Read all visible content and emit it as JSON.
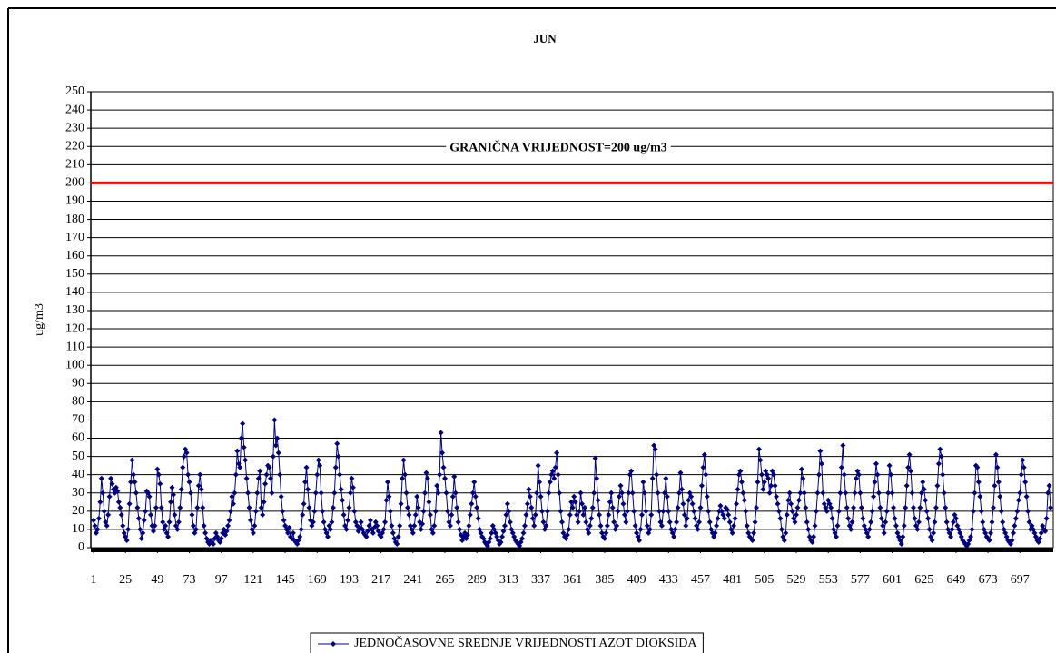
{
  "chart_data": {
    "type": "line",
    "title": "JUN",
    "y_label": "ug/m3",
    "series": [
      {
        "name": "JEDNOČASOVNE SREDNJE VRIJEDNOSTI AZOT DIOKSIDA",
        "color": "#000080",
        "marker": "diamond",
        "values": [
          15,
          12,
          8,
          10,
          16,
          25,
          38,
          30,
          20,
          14,
          12,
          18,
          28,
          38,
          35,
          32,
          30,
          33,
          31,
          25,
          22,
          18,
          12,
          8,
          6,
          4,
          10,
          24,
          36,
          48,
          40,
          36,
          30,
          22,
          16,
          10,
          5,
          8,
          15,
          20,
          31,
          30,
          28,
          18,
          12,
          9,
          12,
          22,
          43,
          40,
          35,
          22,
          14,
          10,
          12,
          8,
          6,
          14,
          25,
          33,
          29,
          18,
          12,
          10,
          14,
          22,
          32,
          44,
          50,
          54,
          52,
          40,
          36,
          30,
          18,
          12,
          8,
          10,
          22,
          34,
          40,
          32,
          22,
          12,
          8,
          5,
          3,
          2,
          4,
          3,
          2,
          5,
          8,
          6,
          4,
          3,
          5,
          8,
          10,
          7,
          9,
          12,
          15,
          20,
          28,
          24,
          30,
          40,
          53,
          46,
          44,
          60,
          68,
          55,
          48,
          38,
          30,
          22,
          15,
          10,
          8,
          12,
          20,
          30,
          38,
          42,
          22,
          18,
          25,
          35,
          40,
          45,
          44,
          38,
          30,
          50,
          70,
          56,
          60,
          52,
          40,
          28,
          20,
          15,
          12,
          10,
          8,
          11,
          6,
          5,
          8,
          4,
          3,
          2,
          4,
          6,
          10,
          18,
          24,
          36,
          44,
          32,
          22,
          15,
          12,
          14,
          20,
          30,
          40,
          48,
          45,
          30,
          20,
          14,
          10,
          8,
          6,
          12,
          10,
          14,
          22,
          30,
          44,
          57,
          50,
          40,
          32,
          26,
          18,
          12,
          10,
          15,
          22,
          30,
          38,
          33,
          20,
          14,
          12,
          9,
          11,
          14,
          10,
          8,
          7,
          6,
          9,
          12,
          15,
          10,
          8,
          11,
          14,
          12,
          9,
          7,
          6,
          8,
          10,
          14,
          26,
          36,
          28,
          20,
          12,
          8,
          5,
          3,
          2,
          6,
          12,
          24,
          38,
          48,
          40,
          30,
          22,
          18,
          12,
          10,
          8,
          12,
          18,
          28,
          22,
          14,
          10,
          13,
          20,
          30,
          41,
          38,
          25,
          18,
          10,
          8,
          12,
          20,
          34,
          30,
          40,
          63,
          52,
          44,
          38,
          30,
          20,
          14,
          12,
          18,
          28,
          39,
          30,
          22,
          14,
          10,
          7,
          4,
          6,
          8,
          5,
          7,
          12,
          18,
          24,
          30,
          36,
          28,
          22,
          16,
          10,
          8,
          6,
          5,
          3,
          2,
          1,
          3,
          5,
          8,
          12,
          10,
          8,
          6,
          4,
          2,
          3,
          6,
          9,
          12,
          18,
          24,
          20,
          14,
          10,
          8,
          6,
          4,
          3,
          2,
          1,
          3,
          5,
          8,
          12,
          18,
          24,
          32,
          28,
          22,
          16,
          12,
          18,
          30,
          45,
          36,
          28,
          20,
          14,
          10,
          12,
          20,
          30,
          36,
          40,
          42,
          38,
          44,
          52,
          40,
          30,
          20,
          14,
          8,
          6,
          5,
          7,
          10,
          18,
          25,
          22,
          28,
          25,
          18,
          14,
          20,
          30,
          24,
          18,
          22,
          14,
          10,
          8,
          12,
          16,
          22,
          30,
          49,
          38,
          26,
          18,
          12,
          8,
          6,
          5,
          8,
          12,
          18,
          25,
          30,
          22,
          14,
          10,
          12,
          20,
          28,
          34,
          30,
          24,
          18,
          14,
          20,
          30,
          40,
          42,
          30,
          20,
          12,
          8,
          6,
          4,
          10,
          18,
          36,
          30,
          20,
          12,
          8,
          10,
          18,
          38,
          56,
          54,
          40,
          30,
          20,
          14,
          12,
          20,
          30,
          38,
          28,
          20,
          14,
          10,
          8,
          6,
          10,
          14,
          22,
          30,
          41,
          32,
          24,
          18,
          12,
          16,
          26,
          30,
          28,
          24,
          20,
          16,
          12,
          10,
          14,
          22,
          34,
          44,
          51,
          40,
          28,
          20,
          14,
          10,
          8,
          6,
          8,
          12,
          16,
          20,
          23,
          20,
          18,
          16,
          22,
          21,
          18,
          14,
          10,
          8,
          12,
          16,
          24,
          32,
          40,
          42,
          36,
          30,
          26,
          20,
          12,
          8,
          6,
          5,
          4,
          8,
          14,
          22,
          36,
          54,
          48,
          40,
          32,
          36,
          42,
          40,
          38,
          30,
          34,
          42,
          40,
          34,
          28,
          24,
          20,
          16,
          10,
          6,
          4,
          8,
          18,
          26,
          30,
          24,
          20,
          16,
          14,
          18,
          22,
          26,
          30,
          43,
          38,
          30,
          22,
          14,
          10,
          6,
          4,
          3,
          6,
          12,
          20,
          30,
          40,
          53,
          46,
          30,
          24,
          22,
          20,
          26,
          24,
          22,
          16,
          10,
          8,
          6,
          12,
          20,
          30,
          44,
          56,
          40,
          30,
          22,
          16,
          12,
          10,
          14,
          22,
          30,
          38,
          42,
          40,
          30,
          22,
          16,
          12,
          10,
          8,
          6,
          10,
          14,
          20,
          28,
          36,
          46,
          40,
          30,
          22,
          16,
          12,
          8,
          14,
          20,
          30,
          45,
          40,
          30,
          22,
          16,
          12,
          8,
          6,
          4,
          2,
          6,
          12,
          22,
          34,
          44,
          51,
          42,
          30,
          22,
          16,
          12,
          10,
          14,
          22,
          30,
          36,
          32,
          26,
          20,
          16,
          10,
          6,
          4,
          8,
          14,
          22,
          34,
          46,
          54,
          50,
          40,
          30,
          22,
          14,
          10,
          8,
          6,
          10,
          14,
          18,
          16,
          12,
          10,
          8,
          6,
          4,
          3,
          2,
          1,
          2,
          4,
          6,
          10,
          20,
          30,
          45,
          44,
          36,
          28,
          20,
          14,
          10,
          8,
          6,
          5,
          4,
          8,
          14,
          22,
          34,
          51,
          44,
          36,
          28,
          20,
          14,
          10,
          8,
          6,
          4,
          3,
          2,
          4,
          8,
          12,
          16,
          20,
          26,
          30,
          40,
          48,
          44,
          36,
          28,
          20,
          14,
          10,
          12,
          10,
          8,
          6,
          4,
          3,
          5,
          8,
          12,
          10,
          9,
          16,
          30,
          34,
          22
        ]
      }
    ],
    "xlim": [
      1,
      720
    ],
    "xticks": [
      1,
      25,
      49,
      73,
      97,
      121,
      145,
      169,
      193,
      217,
      241,
      265,
      289,
      313,
      337,
      361,
      385,
      409,
      433,
      457,
      481,
      505,
      529,
      553,
      577,
      601,
      625,
      649,
      673,
      697
    ],
    "ylim": [
      0,
      250
    ],
    "yticks": [
      0,
      10,
      20,
      30,
      40,
      50,
      60,
      70,
      80,
      90,
      100,
      110,
      120,
      130,
      140,
      150,
      160,
      170,
      180,
      190,
      200,
      210,
      220,
      230,
      240,
      250
    ],
    "grid": true,
    "limit": {
      "value": 200,
      "label": "GRANIČNA VRIJEDNOST=200 ug/m3",
      "color": "#ff0000"
    }
  }
}
